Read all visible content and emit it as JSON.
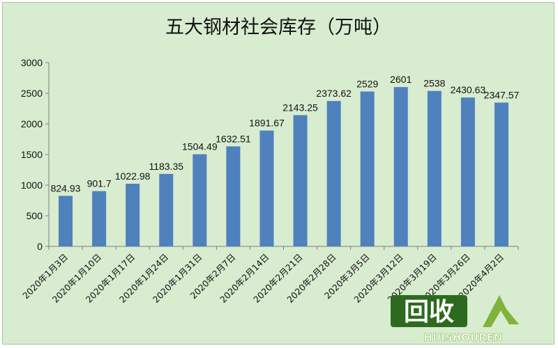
{
  "chart_data": {
    "type": "bar",
    "title": "五大钢材社会库存（万吨）",
    "categories": [
      "2020年1月3日",
      "2020年1月10日",
      "2020年1月17日",
      "2020年1月24日",
      "2020年1月31日",
      "2020年2月7日",
      "2020年2月14日",
      "2020年2月21日",
      "2020年2月28日",
      "2020年3月5日",
      "2020年3月12日",
      "2020年3月19日",
      "2020年3月26日",
      "2020年4月2日"
    ],
    "values": [
      824.93,
      901.7,
      1022.98,
      1183.35,
      1504.49,
      1632.51,
      1891.67,
      2143.25,
      2373.62,
      2529,
      2601,
      2538,
      2430.63,
      2347.57
    ],
    "value_labels": [
      "824.93",
      "901.7",
      "1022.98",
      "1183.35",
      "1504.49",
      "1632.51",
      "1891.67",
      "2143.25",
      "2373.62",
      "2529",
      "2601",
      "2538",
      "2430.63",
      "2347.57"
    ],
    "yticks": [
      "0",
      "500",
      "1000",
      "1500",
      "2000",
      "2500",
      "3000"
    ],
    "ylim": [
      0,
      3000
    ],
    "grid": false,
    "legend": "none",
    "bar_color": "#4f81bd",
    "background_color": "#d8ecd0"
  },
  "watermark": {
    "logo_text": "回收",
    "site_text": "HUISHOUREN",
    "text_color": "#ffffff",
    "box_color": "#2d6a1f",
    "accent_color": "#7fb33a"
  }
}
